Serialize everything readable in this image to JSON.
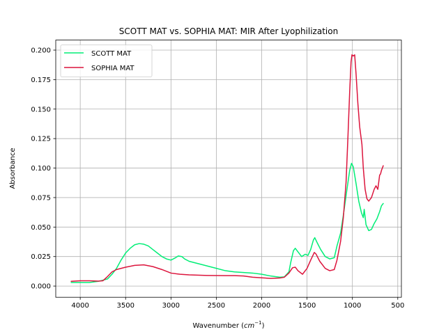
{
  "chart_data": {
    "type": "line",
    "title": "SCOTT MAT vs. SOPHIA MAT: MIR After Lyophilization",
    "xlabel_main": "Wavenumber (",
    "xlabel_unit": "cm",
    "xlabel_sup": "−1",
    "xlabel_close": ")",
    "ylabel": "Absorbance",
    "xlim": [
      4270,
      460
    ],
    "ylim": [
      -0.0095,
      0.2085
    ],
    "x_inverted": true,
    "grid": true,
    "legend_position": "upper-left",
    "x_ticks": [
      4000,
      3500,
      3000,
      2500,
      2000,
      1500,
      1000,
      500
    ],
    "x_tick_labels": [
      "4000",
      "3500",
      "3000",
      "2500",
      "2000",
      "1500",
      "1000",
      "500"
    ],
    "y_ticks": [
      0.0,
      0.025,
      0.05,
      0.075,
      0.1,
      0.125,
      0.15,
      0.175,
      0.2
    ],
    "y_tick_labels": [
      "0.000",
      "0.025",
      "0.050",
      "0.075",
      "0.100",
      "0.125",
      "0.150",
      "0.175",
      "0.200"
    ],
    "series": [
      {
        "name": "SCOTT MAT",
        "color": "#00ee76",
        "points": [
          [
            4100,
            0.003
          ],
          [
            3900,
            0.003
          ],
          [
            3800,
            0.004
          ],
          [
            3700,
            0.006
          ],
          [
            3650,
            0.01
          ],
          [
            3600,
            0.015
          ],
          [
            3550,
            0.022
          ],
          [
            3500,
            0.028
          ],
          [
            3450,
            0.032
          ],
          [
            3400,
            0.035
          ],
          [
            3350,
            0.036
          ],
          [
            3300,
            0.0355
          ],
          [
            3250,
            0.034
          ],
          [
            3200,
            0.031
          ],
          [
            3150,
            0.028
          ],
          [
            3100,
            0.025
          ],
          [
            3050,
            0.023
          ],
          [
            3000,
            0.022
          ],
          [
            2950,
            0.024
          ],
          [
            2920,
            0.0255
          ],
          [
            2880,
            0.025
          ],
          [
            2850,
            0.023
          ],
          [
            2800,
            0.021
          ],
          [
            2700,
            0.019
          ],
          [
            2600,
            0.017
          ],
          [
            2500,
            0.015
          ],
          [
            2400,
            0.013
          ],
          [
            2300,
            0.012
          ],
          [
            2200,
            0.0115
          ],
          [
            2100,
            0.011
          ],
          [
            2000,
            0.01
          ],
          [
            1900,
            0.0085
          ],
          [
            1800,
            0.0075
          ],
          [
            1750,
            0.0078
          ],
          [
            1700,
            0.012
          ],
          [
            1680,
            0.02
          ],
          [
            1650,
            0.03
          ],
          [
            1630,
            0.032
          ],
          [
            1600,
            0.029
          ],
          [
            1560,
            0.025
          ],
          [
            1520,
            0.027
          ],
          [
            1490,
            0.026
          ],
          [
            1460,
            0.031
          ],
          [
            1430,
            0.039
          ],
          [
            1415,
            0.041
          ],
          [
            1390,
            0.037
          ],
          [
            1350,
            0.031
          ],
          [
            1300,
            0.025
          ],
          [
            1250,
            0.023
          ],
          [
            1200,
            0.024
          ],
          [
            1170,
            0.034
          ],
          [
            1130,
            0.045
          ],
          [
            1100,
            0.06
          ],
          [
            1060,
            0.082
          ],
          [
            1030,
            0.098
          ],
          [
            1010,
            0.104
          ],
          [
            990,
            0.101
          ],
          [
            960,
            0.087
          ],
          [
            930,
            0.072
          ],
          [
            900,
            0.062
          ],
          [
            880,
            0.058
          ],
          [
            870,
            0.065
          ],
          [
            850,
            0.052
          ],
          [
            820,
            0.047
          ],
          [
            790,
            0.048
          ],
          [
            760,
            0.053
          ],
          [
            730,
            0.057
          ],
          [
            700,
            0.063
          ],
          [
            680,
            0.068
          ],
          [
            660,
            0.07
          ]
        ]
      },
      {
        "name": "SOPHIA MAT",
        "color": "#dc143c",
        "points": [
          [
            4100,
            0.004
          ],
          [
            4000,
            0.0045
          ],
          [
            3900,
            0.0045
          ],
          [
            3800,
            0.0042
          ],
          [
            3750,
            0.0045
          ],
          [
            3700,
            0.008
          ],
          [
            3650,
            0.012
          ],
          [
            3600,
            0.014
          ],
          [
            3500,
            0.016
          ],
          [
            3400,
            0.0175
          ],
          [
            3300,
            0.018
          ],
          [
            3200,
            0.0165
          ],
          [
            3100,
            0.014
          ],
          [
            3000,
            0.011
          ],
          [
            2900,
            0.01
          ],
          [
            2800,
            0.0095
          ],
          [
            2600,
            0.009
          ],
          [
            2400,
            0.0088
          ],
          [
            2300,
            0.0088
          ],
          [
            2200,
            0.0085
          ],
          [
            2100,
            0.0075
          ],
          [
            2000,
            0.007
          ],
          [
            1900,
            0.0065
          ],
          [
            1800,
            0.0068
          ],
          [
            1750,
            0.0075
          ],
          [
            1700,
            0.011
          ],
          [
            1660,
            0.0155
          ],
          [
            1630,
            0.016
          ],
          [
            1600,
            0.013
          ],
          [
            1550,
            0.01
          ],
          [
            1500,
            0.015
          ],
          [
            1460,
            0.022
          ],
          [
            1420,
            0.0285
          ],
          [
            1400,
            0.027
          ],
          [
            1360,
            0.021
          ],
          [
            1300,
            0.015
          ],
          [
            1250,
            0.013
          ],
          [
            1200,
            0.014
          ],
          [
            1170,
            0.022
          ],
          [
            1130,
            0.038
          ],
          [
            1100,
            0.058
          ],
          [
            1070,
            0.088
          ],
          [
            1050,
            0.125
          ],
          [
            1030,
            0.165
          ],
          [
            1015,
            0.19
          ],
          [
            1005,
            0.196
          ],
          [
            990,
            0.195
          ],
          [
            975,
            0.196
          ],
          [
            960,
            0.18
          ],
          [
            940,
            0.155
          ],
          [
            920,
            0.135
          ],
          [
            905,
            0.126
          ],
          [
            895,
            0.12
          ],
          [
            880,
            0.1
          ],
          [
            860,
            0.082
          ],
          [
            840,
            0.074
          ],
          [
            820,
            0.072
          ],
          [
            790,
            0.075
          ],
          [
            760,
            0.082
          ],
          [
            740,
            0.085
          ],
          [
            720,
            0.082
          ],
          [
            700,
            0.094
          ],
          [
            690,
            0.095
          ],
          [
            680,
            0.098
          ],
          [
            660,
            0.102
          ]
        ]
      }
    ]
  }
}
